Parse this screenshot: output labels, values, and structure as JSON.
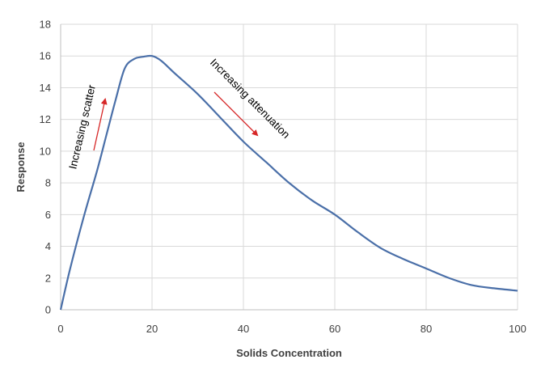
{
  "chart_data": {
    "type": "line",
    "title": "",
    "xlabel": "Solids Concentration",
    "ylabel": "Response",
    "xlim": [
      0,
      100
    ],
    "ylim": [
      0,
      18
    ],
    "xticks": [
      0,
      20,
      40,
      60,
      80,
      100
    ],
    "yticks": [
      0,
      2,
      4,
      6,
      8,
      10,
      12,
      14,
      16,
      18
    ],
    "grid": true,
    "series": [
      {
        "color": "#4a6fa8",
        "x": [
          0,
          2,
          5,
          8,
          10,
          12,
          14,
          16,
          18,
          20,
          22,
          25,
          30,
          35,
          40,
          45,
          50,
          55,
          60,
          65,
          70,
          75,
          80,
          85,
          90,
          95,
          100
        ],
        "y": [
          0,
          2.5,
          5.8,
          8.8,
          11,
          13.2,
          15.2,
          15.8,
          15.95,
          16,
          15.7,
          14.9,
          13.6,
          12.1,
          10.6,
          9.3,
          8.0,
          6.9,
          6.0,
          4.9,
          3.9,
          3.2,
          2.6,
          2.0,
          1.55,
          1.35,
          1.2
        ]
      }
    ],
    "annotations": [
      {
        "text": "Increasing scatter",
        "arrow_color": "#d62728"
      },
      {
        "text": "Increasing attenuation",
        "arrow_color": "#d62728"
      }
    ]
  }
}
